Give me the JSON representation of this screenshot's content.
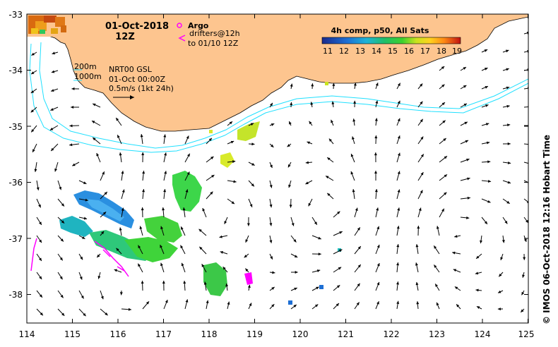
{
  "map": {
    "date_line": "01-Oct-2018",
    "time_line": "12Z",
    "argo_label": "Argo",
    "drifters_label_1": "drifters@12h",
    "drifters_label_2": "to 01/10 12Z",
    "isobath_200": "200m",
    "isobath_1000": "1000m",
    "source": "NRT00 GSL",
    "source_time": "01-Oct 00:00Z",
    "scale_label": "0.5m/s (1kt 24h)",
    "colorbar_title": "4h comp, p50, All Sats",
    "colorbar_ticks": [
      "11",
      "12",
      "13",
      "14",
      "15",
      "16",
      "17",
      "18",
      "19"
    ],
    "credit": "© IMOS 06-Oct-2018 12:16 Hobart Time",
    "lon_ticks": [
      "114",
      "115",
      "116",
      "117",
      "118",
      "119",
      "120",
      "121",
      "122",
      "123",
      "124",
      "125"
    ],
    "lat_ticks": [
      "-33",
      "-34",
      "-35",
      "-36",
      "-37",
      "-38"
    ],
    "colors": {
      "land": "#fdc58f",
      "isobath": "#20e0ff",
      "drifter": "#ff00ff",
      "argo": "#ff00ff"
    }
  }
}
